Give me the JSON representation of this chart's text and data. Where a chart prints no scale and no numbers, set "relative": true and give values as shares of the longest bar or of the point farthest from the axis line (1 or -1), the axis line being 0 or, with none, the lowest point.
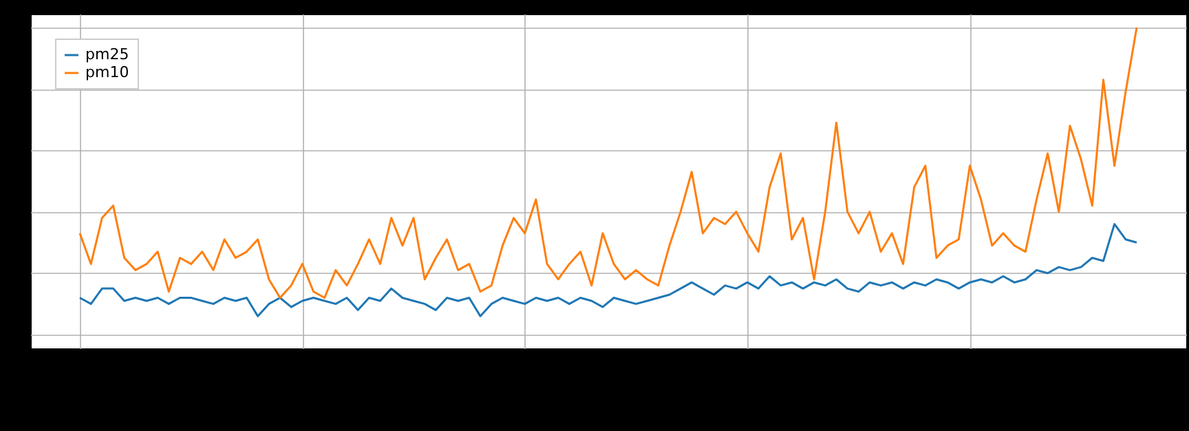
{
  "chart_data": {
    "type": "line",
    "relative": true,
    "grid": true,
    "legend": "top left",
    "categories": [
      null,
      null,
      null,
      null,
      null,
      null,
      null,
      null,
      null,
      null,
      null,
      null,
      null,
      null,
      null,
      null,
      null,
      null,
      null,
      null,
      null,
      null,
      null,
      null,
      null,
      null,
      null,
      null,
      null,
      null,
      null,
      null,
      null,
      null,
      null,
      null,
      null,
      null,
      null,
      null,
      null,
      null,
      null,
      null,
      null,
      null,
      null,
      null,
      null,
      null,
      null,
      null,
      null,
      null,
      null,
      null,
      null,
      null,
      null,
      null,
      null,
      null,
      null,
      null,
      null,
      null,
      null,
      null,
      null,
      null,
      null,
      null,
      null,
      null,
      null,
      null,
      null,
      null,
      null,
      null,
      null,
      null,
      null,
      null,
      null,
      null,
      null,
      null,
      null,
      null,
      null,
      null,
      null,
      null,
      null,
      null
    ],
    "series": [
      {
        "name": "pm25",
        "color": "#1f77b4",
        "values": [
          0.12,
          0.1,
          0.15,
          0.15,
          0.11,
          0.12,
          0.11,
          0.12,
          0.1,
          0.12,
          0.12,
          0.11,
          0.1,
          0.12,
          0.11,
          0.12,
          0.06,
          0.1,
          0.12,
          0.09,
          0.11,
          0.12,
          0.11,
          0.1,
          0.12,
          0.08,
          0.12,
          0.11,
          0.15,
          0.12,
          0.11,
          0.1,
          0.08,
          0.12,
          0.11,
          0.12,
          0.06,
          0.1,
          0.12,
          0.11,
          0.1,
          0.12,
          0.11,
          0.12,
          0.1,
          0.12,
          0.11,
          0.09,
          0.12,
          0.11,
          0.1,
          0.11,
          0.12,
          0.13,
          0.15,
          0.17,
          0.15,
          0.13,
          0.16,
          0.15,
          0.17,
          0.15,
          0.19,
          0.16,
          0.17,
          0.15,
          0.17,
          0.16,
          0.18,
          0.15,
          0.14,
          0.17,
          0.16,
          0.17,
          0.15,
          0.17,
          0.16,
          0.18,
          0.17,
          0.15,
          0.17,
          0.18,
          0.17,
          0.19,
          0.17,
          0.18,
          0.21,
          0.2,
          0.22,
          0.21,
          0.22,
          0.25,
          0.24,
          0.36,
          0.31,
          0.3
        ]
      },
      {
        "name": "pm10",
        "color": "#ff7f0e",
        "values": [
          0.33,
          0.23,
          0.38,
          0.42,
          0.25,
          0.21,
          0.23,
          0.27,
          0.14,
          0.25,
          0.23,
          0.27,
          0.21,
          0.31,
          0.25,
          0.27,
          0.31,
          0.18,
          0.12,
          0.16,
          0.23,
          0.14,
          0.12,
          0.21,
          0.16,
          0.23,
          0.31,
          0.23,
          0.38,
          0.29,
          0.38,
          0.18,
          0.25,
          0.31,
          0.21,
          0.23,
          0.14,
          0.16,
          0.29,
          0.38,
          0.33,
          0.44,
          0.23,
          0.18,
          0.23,
          0.27,
          0.16,
          0.33,
          0.23,
          0.18,
          0.21,
          0.18,
          0.16,
          0.29,
          0.4,
          0.53,
          0.33,
          0.38,
          0.36,
          0.4,
          0.33,
          0.27,
          0.48,
          0.59,
          0.31,
          0.38,
          0.18,
          0.4,
          0.69,
          0.4,
          0.33,
          0.4,
          0.27,
          0.33,
          0.23,
          0.48,
          0.55,
          0.25,
          0.29,
          0.31,
          0.55,
          0.44,
          0.29,
          0.33,
          0.29,
          0.27,
          0.44,
          0.59,
          0.4,
          0.68,
          0.57,
          0.42,
          0.83,
          0.55,
          0.79,
          1.0
        ]
      }
    ]
  }
}
